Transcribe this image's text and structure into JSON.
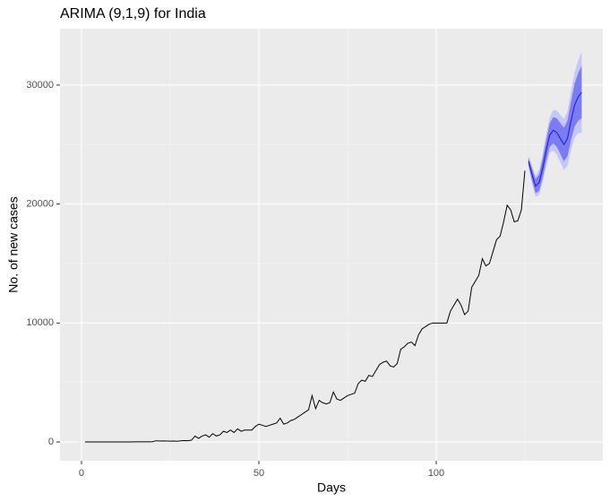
{
  "chart_data": {
    "type": "line",
    "title": "ARIMA (9,1,9) for India",
    "x_label": "Days",
    "y_label": "No. of new cases",
    "x": [
      1,
      2,
      3,
      4,
      5,
      6,
      7,
      8,
      9,
      10,
      11,
      12,
      13,
      14,
      15,
      16,
      17,
      18,
      19,
      20,
      21,
      22,
      23,
      24,
      25,
      26,
      27,
      28,
      29,
      30,
      31,
      32,
      33,
      34,
      35,
      36,
      37,
      38,
      39,
      40,
      41,
      42,
      43,
      44,
      45,
      46,
      47,
      48,
      49,
      50,
      51,
      52,
      53,
      54,
      55,
      56,
      57,
      58,
      59,
      60,
      61,
      62,
      63,
      64,
      65,
      66,
      67,
      68,
      69,
      70,
      71,
      72,
      73,
      74,
      75,
      76,
      77,
      78,
      79,
      80,
      81,
      82,
      83,
      84,
      85,
      86,
      87,
      88,
      89,
      90,
      91,
      92,
      93,
      94,
      95,
      96,
      97,
      98,
      99,
      100,
      101,
      102,
      103,
      104,
      105,
      106,
      107,
      108,
      109,
      110,
      111,
      112,
      113,
      114,
      115,
      116,
      117,
      118,
      119,
      120,
      121,
      122,
      123,
      124,
      125
    ],
    "values": [
      0,
      0,
      0,
      0,
      1,
      3,
      0,
      0,
      1,
      2,
      2,
      3,
      0,
      5,
      12,
      10,
      8,
      12,
      15,
      25,
      100,
      80,
      90,
      80,
      70,
      75,
      60,
      100,
      120,
      110,
      150,
      500,
      300,
      500,
      600,
      400,
      700,
      500,
      600,
      900,
      800,
      1000,
      800,
      1100,
      900,
      1000,
      1000,
      1000,
      1300,
      1500,
      1400,
      1300,
      1400,
      1500,
      1600,
      2000,
      1500,
      1600,
      1800,
      1900,
      2100,
      2300,
      2500,
      2700,
      3900,
      2800,
      3500,
      3300,
      3200,
      3300,
      4200,
      3600,
      3500,
      3700,
      3900,
      4000,
      4100,
      4900,
      5200,
      5100,
      5600,
      5500,
      6000,
      6500,
      6700,
      6800,
      6400,
      6300,
      6600,
      7800,
      8000,
      8300,
      8400,
      8100,
      9000,
      9500,
      9700,
      9900,
      10000,
      10000,
      10000,
      10000,
      10000,
      11000,
      11500,
      12000,
      11500,
      10700,
      11000,
      13000,
      13500,
      14000,
      15400,
      14800,
      15000,
      16000,
      17000,
      17300,
      18500,
      19900,
      19500,
      18500,
      18600,
      19500,
      22800
    ],
    "color": "#000000",
    "forecast": {
      "x": [
        126,
        127,
        128,
        129,
        130,
        131,
        132,
        133,
        134,
        135,
        136,
        137,
        138,
        139,
        140,
        141
      ],
      "mean": [
        23600,
        22500,
        21500,
        21800,
        23000,
        24500,
        25800,
        26200,
        26000,
        25500,
        25000,
        25500,
        27000,
        28300,
        29000,
        29400
      ],
      "lo80": [
        23300,
        22000,
        20900,
        21100,
        22200,
        23600,
        24800,
        25100,
        24800,
        24200,
        23600,
        24000,
        25400,
        26500,
        27000,
        27200
      ],
      "hi80": [
        23900,
        23000,
        22100,
        22500,
        23800,
        25400,
        26800,
        27300,
        27200,
        26800,
        26400,
        27000,
        28600,
        30100,
        31000,
        31600
      ],
      "lo95": [
        23150,
        21750,
        20600,
        20750,
        21800,
        23150,
        24300,
        24500,
        24150,
        23500,
        22850,
        23200,
        24500,
        25550,
        25950,
        26000
      ],
      "hi95": [
        24050,
        23250,
        22400,
        22850,
        24200,
        25850,
        27300,
        27900,
        27850,
        27500,
        27150,
        27800,
        29500,
        31050,
        32050,
        32800
      ],
      "color": "#1a1acc",
      "color80": "#7b7bf2",
      "color95": "#c6c6f9"
    },
    "xlim": [
      -6.06,
      146.97
    ],
    "ylim": [
      -1580,
      34740
    ],
    "xticks": [
      0,
      50,
      100
    ],
    "yticks": [
      0,
      10000,
      20000,
      30000
    ],
    "grid": true
  }
}
